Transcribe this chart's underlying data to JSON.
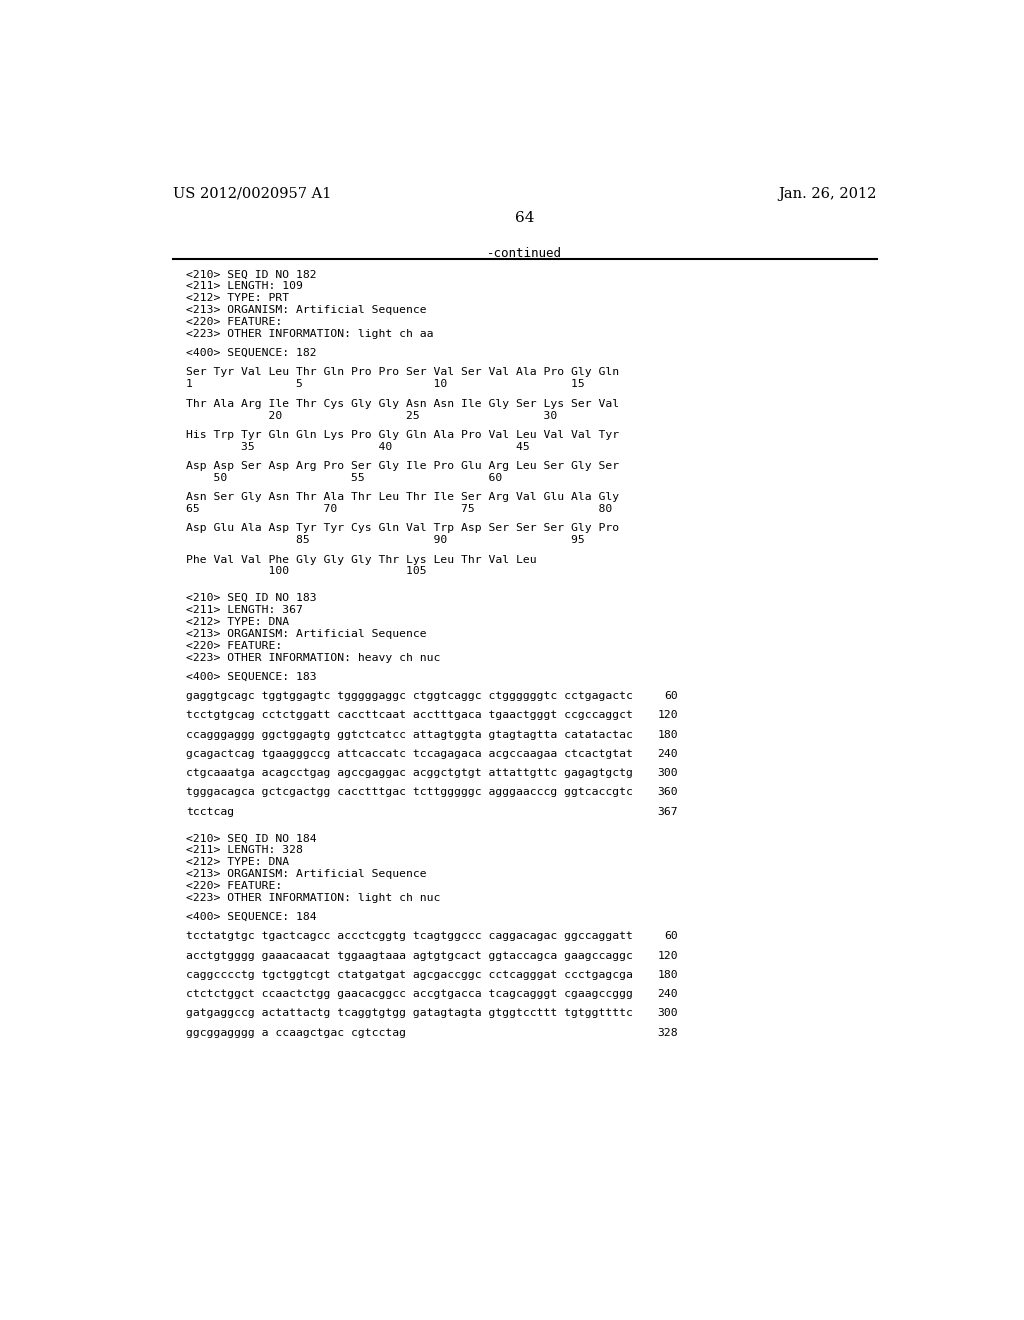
{
  "header_left": "US 2012/0020957 A1",
  "header_right": "Jan. 26, 2012",
  "page_number": "64",
  "continued_text": "-continued",
  "background_color": "#ffffff",
  "text_color": "#000000",
  "font_size_header": 10.5,
  "font_size_page": 11,
  "font_size_mono": 8.2,
  "content": [
    {
      "type": "metadata",
      "lines": [
        "<210> SEQ ID NO 182",
        "<211> LENGTH: 109",
        "<212> TYPE: PRT",
        "<213> ORGANISM: Artificial Sequence",
        "<220> FEATURE:",
        "<223> OTHER INFORMATION: light ch aa"
      ]
    },
    {
      "type": "blank"
    },
    {
      "type": "sequence_label",
      "text": "<400> SEQUENCE: 182"
    },
    {
      "type": "blank"
    },
    {
      "type": "aa_seq",
      "seq": "Ser Tyr Val Leu Thr Gln Pro Pro Ser Val Ser Val Ala Pro Gly Gln",
      "nums": "1               5                   10                  15"
    },
    {
      "type": "blank"
    },
    {
      "type": "aa_seq",
      "seq": "Thr Ala Arg Ile Thr Cys Gly Gly Asn Asn Ile Gly Ser Lys Ser Val",
      "nums": "            20                  25                  30"
    },
    {
      "type": "blank"
    },
    {
      "type": "aa_seq",
      "seq": "His Trp Tyr Gln Gln Lys Pro Gly Gln Ala Pro Val Leu Val Val Tyr",
      "nums": "        35                  40                  45"
    },
    {
      "type": "blank"
    },
    {
      "type": "aa_seq",
      "seq": "Asp Asp Ser Asp Arg Pro Ser Gly Ile Pro Glu Arg Leu Ser Gly Ser",
      "nums": "    50                  55                  60"
    },
    {
      "type": "blank"
    },
    {
      "type": "aa_seq",
      "seq": "Asn Ser Gly Asn Thr Ala Thr Leu Thr Ile Ser Arg Val Glu Ala Gly",
      "nums": "65                  70                  75                  80"
    },
    {
      "type": "blank"
    },
    {
      "type": "aa_seq",
      "seq": "Asp Glu Ala Asp Tyr Tyr Cys Gln Val Trp Asp Ser Ser Ser Gly Pro",
      "nums": "                85                  90                  95"
    },
    {
      "type": "blank"
    },
    {
      "type": "aa_seq",
      "seq": "Phe Val Val Phe Gly Gly Gly Thr Lys Leu Thr Val Leu",
      "nums": "            100                 105"
    },
    {
      "type": "blank"
    },
    {
      "type": "blank"
    },
    {
      "type": "metadata",
      "lines": [
        "<210> SEQ ID NO 183",
        "<211> LENGTH: 367",
        "<212> TYPE: DNA",
        "<213> ORGANISM: Artificial Sequence",
        "<220> FEATURE:",
        "<223> OTHER INFORMATION: heavy ch nuc"
      ]
    },
    {
      "type": "blank"
    },
    {
      "type": "sequence_label",
      "text": "<400> SEQUENCE: 183"
    },
    {
      "type": "blank"
    },
    {
      "type": "dna_seq",
      "seq": "gaggtgcagc tggtggagtc tgggggaggc ctggtcaggc ctggggggtc cctgagactc",
      "num": "60"
    },
    {
      "type": "blank"
    },
    {
      "type": "dna_seq",
      "seq": "tcctgtgcag cctctggatt caccttcaat acctttgaca tgaactgggt ccgccaggct",
      "num": "120"
    },
    {
      "type": "blank"
    },
    {
      "type": "dna_seq",
      "seq": "ccagggaggg ggctggagtg ggtctcatcc attagtggta gtagtagtta catatactac",
      "num": "180"
    },
    {
      "type": "blank"
    },
    {
      "type": "dna_seq",
      "seq": "gcagactcag tgaagggccg attcaccatc tccagagaca acgccaagaa ctcactgtat",
      "num": "240"
    },
    {
      "type": "blank"
    },
    {
      "type": "dna_seq",
      "seq": "ctgcaaatga acagcctgag agccgaggac acggctgtgt attattgttc gagagtgctg",
      "num": "300"
    },
    {
      "type": "blank"
    },
    {
      "type": "dna_seq",
      "seq": "tgggacagca gctcgactgg cacctttgac tcttgggggc agggaacccg ggtcaccgtc",
      "num": "360"
    },
    {
      "type": "blank"
    },
    {
      "type": "dna_seq",
      "seq": "tcctcag",
      "num": "367"
    },
    {
      "type": "blank"
    },
    {
      "type": "blank"
    },
    {
      "type": "metadata",
      "lines": [
        "<210> SEQ ID NO 184",
        "<211> LENGTH: 328",
        "<212> TYPE: DNA",
        "<213> ORGANISM: Artificial Sequence",
        "<220> FEATURE:",
        "<223> OTHER INFORMATION: light ch nuc"
      ]
    },
    {
      "type": "blank"
    },
    {
      "type": "sequence_label",
      "text": "<400> SEQUENCE: 184"
    },
    {
      "type": "blank"
    },
    {
      "type": "dna_seq",
      "seq": "tcctatgtgc tgactcagcc accctcggtg tcagtggccc caggacagac ggccaggatt",
      "num": "60"
    },
    {
      "type": "blank"
    },
    {
      "type": "dna_seq",
      "seq": "acctgtgggg gaaacaacat tggaagtaaa agtgtgcact ggtaccagca gaagccaggc",
      "num": "120"
    },
    {
      "type": "blank"
    },
    {
      "type": "dna_seq",
      "seq": "caggcccctg tgctggtcgt ctatgatgat agcgaccggc cctcagggat ccctgagcga",
      "num": "180"
    },
    {
      "type": "blank"
    },
    {
      "type": "dna_seq",
      "seq": "ctctctggct ccaactctgg gaacacggcc accgtgacca tcagcagggt cgaagccggg",
      "num": "240"
    },
    {
      "type": "blank"
    },
    {
      "type": "dna_seq",
      "seq": "gatgaggccg actattactg tcaggtgtgg gatagtagta gtggtccttt tgtggttttc",
      "num": "300"
    },
    {
      "type": "blank"
    },
    {
      "type": "dna_seq",
      "seq": "ggcggagggg a ccaagctgac cgtcctag",
      "num": "328"
    }
  ]
}
